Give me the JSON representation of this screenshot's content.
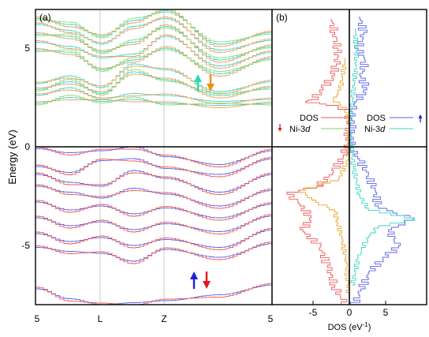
{
  "panel_a": {
    "label": "(a)",
    "ylabel": "Energy (eV)",
    "yticks": [
      "5",
      "0",
      "-5"
    ],
    "kpoints": [
      "5",
      "L",
      "Z",
      "5"
    ],
    "spin_markers": {
      "upper": {
        "up_color": "#2bd9b8",
        "down_color": "#f08c1c"
      },
      "lower": {
        "up_color": "#1a22d8",
        "down_color": "#e01a1a"
      }
    }
  },
  "panel_b": {
    "label": "(b)",
    "xlabel_main": "DOS (eV",
    "xlabel_sup": "-1",
    "xlabel_close": ")",
    "xticks": [
      "-5",
      "0",
      "5"
    ],
    "legend_down": {
      "dos": "DOS",
      "ni_prefix": "Ni-3",
      "ni_suffix": "d"
    },
    "legend_up": {
      "dos": "DOS",
      "ni_prefix": "Ni-3",
      "ni_suffix": "d"
    }
  },
  "colors": {
    "up_dos": "#5b64e6",
    "down_dos": "#ee5a5a",
    "up_band_low": "#5b64e6",
    "down_band_low": "#ee5a5a",
    "up_band_high": "#43d6c8",
    "down_band_high": "#f2a060",
    "ni_up": "#39d6c4",
    "ni_down": "#e8a430",
    "ni_band_green": "#7dd96a"
  },
  "chart_data": [
    {
      "type": "line",
      "title": "",
      "xlabel": "",
      "ylabel": "Energy (eV)",
      "ylim": [
        -8.2,
        7
      ],
      "x_ticks": [
        "5",
        "L",
        "Z",
        "5"
      ],
      "grid": "vertical lines at L and Z",
      "note_values": "band energies estimated at sample points along the path",
      "series": [
        {
          "values": [
            6.5,
            6.2,
            5.6,
            6.4,
            6.9,
            5.2,
            5.8
          ]
        },
        {
          "values": [
            6.2,
            5.9,
            5.2,
            6.1,
            6.5,
            4.9,
            5.4
          ]
        },
        {
          "values": [
            5.7,
            5.6,
            4.8,
            5.3,
            6.1,
            4.4,
            5.1
          ]
        },
        {
          "values": [
            5.3,
            5.1,
            4.5,
            4.7,
            5.6,
            4.1,
            4.8
          ]
        },
        {
          "values": [
            4.9,
            4.8,
            3.9,
            4.4,
            5.0,
            3.7,
            4.5
          ]
        },
        {
          "values": [
            3.2,
            3.6,
            3.0,
            4.2,
            3.9,
            2.8,
            3.3
          ]
        },
        {
          "values": [
            2.9,
            3.3,
            2.7,
            3.8,
            3.4,
            2.6,
            3.0
          ]
        },
        {
          "values": [
            2.6,
            3.0,
            2.4,
            2.7,
            2.6,
            2.3,
            2.4
          ]
        },
        {
          "values": [
            2.2,
            2.5,
            2.3,
            2.4,
            2.2,
            2.1,
            2.2
          ]
        },
        {
          "values": [
            -0.1,
            -0.3,
            -0.2,
            0.0,
            -0.5,
            -0.9,
            -0.2
          ]
        },
        {
          "values": [
            -1.0,
            -1.3,
            -0.7,
            -0.6,
            -1.1,
            -1.4,
            -0.6
          ]
        },
        {
          "values": [
            -1.4,
            -1.8,
            -2.0,
            -1.2,
            -1.6,
            -2.3,
            -1.4
          ]
        },
        {
          "values": [
            -2.0,
            -2.3,
            -2.6,
            -2.1,
            -2.4,
            -3.0,
            -2.2
          ]
        },
        {
          "values": [
            -2.8,
            -3.2,
            -3.0,
            -3.4,
            -3.1,
            -3.6,
            -2.9
          ]
        },
        {
          "values": [
            -3.6,
            -4.0,
            -3.8,
            -4.2,
            -3.9,
            -4.3,
            -3.5
          ]
        },
        {
          "values": [
            -4.4,
            -4.8,
            -4.6,
            -5.0,
            -4.7,
            -5.1,
            -4.2
          ]
        },
        {
          "values": [
            -5.1,
            -5.3,
            -5.4,
            -5.8,
            -5.2,
            -5.6,
            -4.9
          ]
        },
        {
          "values": [
            -7.2,
            -7.7,
            -8.0,
            -7.9,
            -7.8,
            -7.5,
            -7.0
          ]
        }
      ]
    },
    {
      "type": "line",
      "title": "",
      "xlabel": "DOS (eV-1)",
      "ylabel": "",
      "xlim": [
        -9,
        9
      ],
      "ylim": [
        -8.2,
        7
      ],
      "note_orientation": "x = DOS, y = Energy (eV); spin-down plotted as negative DOS",
      "series": [
        {
          "name": "DOS",
          "spin": "down",
          "points": [
            [
              -2.5,
              6.5
            ],
            [
              -2.0,
              5.8
            ],
            [
              -1.6,
              5.0
            ],
            [
              -1.8,
              4.2
            ],
            [
              -2.4,
              3.6
            ],
            [
              -3.6,
              3.0
            ],
            [
              -5.2,
              2.4
            ],
            [
              -6.0,
              2.3
            ],
            [
              -1.5,
              2.1
            ],
            [
              0,
              1.8
            ],
            [
              -0.2,
              0.2
            ],
            [
              -0.8,
              -0.4
            ],
            [
              -2.2,
              -1.2
            ],
            [
              -4.5,
              -2.0
            ],
            [
              -8.6,
              -2.3
            ],
            [
              -6.2,
              -3.0
            ],
            [
              -5.5,
              -3.6
            ],
            [
              -6.4,
              -4.2
            ],
            [
              -4.0,
              -5.0
            ],
            [
              -3.0,
              -6.0
            ],
            [
              -2.0,
              -7.0
            ],
            [
              -1.2,
              -7.6
            ],
            [
              -0.2,
              -8.0
            ]
          ]
        },
        {
          "name": "Ni-3d",
          "spin": "down",
          "points": [
            [
              -0.6,
              4.5
            ],
            [
              -1.2,
              3.0
            ],
            [
              -2.2,
              2.4
            ],
            [
              -0.4,
              2.0
            ],
            [
              0,
              1.0
            ],
            [
              -0.2,
              -0.6
            ],
            [
              -1.5,
              -1.6
            ],
            [
              -6.8,
              -2.2
            ],
            [
              -4.6,
              -2.7
            ],
            [
              -2.0,
              -3.2
            ],
            [
              -1.6,
              -3.8
            ],
            [
              -1.0,
              -4.6
            ],
            [
              -0.4,
              -5.8
            ],
            [
              -0.1,
              -7.5
            ]
          ]
        },
        {
          "name": "DOS",
          "spin": "up",
          "points": [
            [
              1.4,
              6.6
            ],
            [
              2.0,
              5.8
            ],
            [
              1.2,
              5.0
            ],
            [
              2.2,
              4.4
            ],
            [
              1.6,
              3.6
            ],
            [
              2.4,
              3.0
            ],
            [
              1.0,
              2.4
            ],
            [
              0.4,
              1.8
            ],
            [
              0.2,
              0.0
            ],
            [
              1.4,
              -0.6
            ],
            [
              2.6,
              -1.4
            ],
            [
              3.6,
              -2.2
            ],
            [
              4.0,
              -3.0
            ],
            [
              8.8,
              -3.6
            ],
            [
              5.4,
              -4.2
            ],
            [
              6.8,
              -5.0
            ],
            [
              4.6,
              -5.6
            ],
            [
              2.6,
              -6.4
            ],
            [
              1.6,
              -7.2
            ],
            [
              0.6,
              -8.0
            ]
          ]
        },
        {
          "name": "Ni-3d",
          "spin": "up",
          "points": [
            [
              0.8,
              6.0
            ],
            [
              1.0,
              4.4
            ],
            [
              0.4,
              2.4
            ],
            [
              0.0,
              1.0
            ],
            [
              0.6,
              -1.0
            ],
            [
              1.4,
              -2.4
            ],
            [
              2.6,
              -3.1
            ],
            [
              9.0,
              -3.6
            ],
            [
              4.0,
              -4.0
            ],
            [
              2.4,
              -4.6
            ],
            [
              1.2,
              -5.6
            ],
            [
              0.4,
              -7.0
            ]
          ]
        }
      ]
    }
  ]
}
